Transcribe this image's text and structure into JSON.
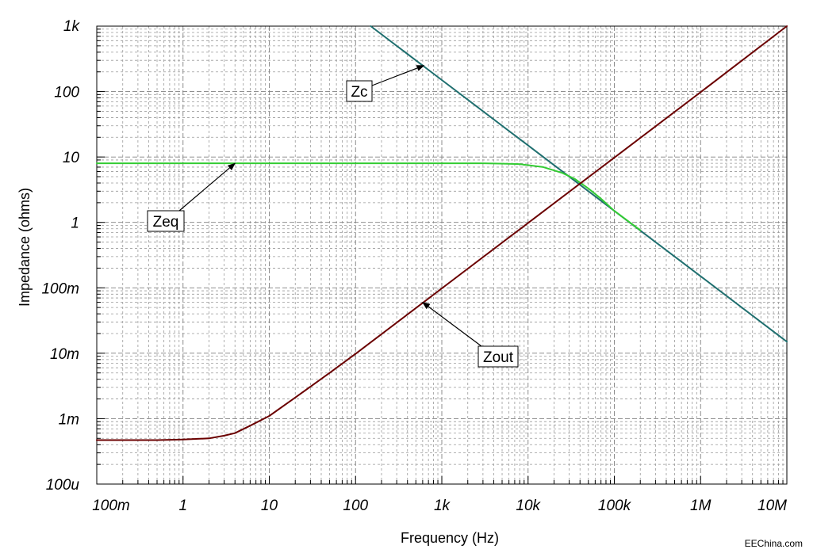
{
  "chart_data": {
    "type": "line",
    "title": "",
    "xlabel": "Frequency (Hz)",
    "ylabel": "Impedance (ohms)",
    "x_scale": "log",
    "y_scale": "log",
    "xlim": [
      0.1,
      10000000
    ],
    "ylim": [
      0.0001,
      1000
    ],
    "grid": true,
    "x_ticks": [
      {
        "value": 0.1,
        "label": "100m"
      },
      {
        "value": 1,
        "label": "1"
      },
      {
        "value": 10,
        "label": "10"
      },
      {
        "value": 100,
        "label": "100"
      },
      {
        "value": 1000,
        "label": "1k"
      },
      {
        "value": 10000,
        "label": "10k"
      },
      {
        "value": 100000,
        "label": "100k"
      },
      {
        "value": 1000000,
        "label": "1M"
      },
      {
        "value": 10000000,
        "label": "10M"
      }
    ],
    "y_ticks": [
      {
        "value": 0.0001,
        "label": "100u"
      },
      {
        "value": 0.001,
        "label": "1m"
      },
      {
        "value": 0.01,
        "label": "10m"
      },
      {
        "value": 0.1,
        "label": "100m"
      },
      {
        "value": 1,
        "label": "1"
      },
      {
        "value": 10,
        "label": "10"
      },
      {
        "value": 100,
        "label": "100"
      },
      {
        "value": 1000,
        "label": "1k"
      }
    ],
    "series": [
      {
        "name": "Zc",
        "color": "#1f6f6f",
        "points": [
          [
            150,
            1000
          ],
          [
            1000,
            150
          ],
          [
            10000,
            15
          ],
          [
            100000,
            1.5
          ],
          [
            1000000,
            0.15
          ],
          [
            10000000,
            0.015
          ]
        ]
      },
      {
        "name": "Zeq",
        "color": "#33cc33",
        "points": [
          [
            0.1,
            8
          ],
          [
            1,
            8
          ],
          [
            100,
            8
          ],
          [
            3000,
            8
          ],
          [
            8000,
            7.8
          ],
          [
            15000,
            7
          ],
          [
            25000,
            5.7
          ],
          [
            35000,
            4.6
          ],
          [
            50000,
            3.3
          ],
          [
            70000,
            2.3
          ],
          [
            100000,
            1.5
          ],
          [
            200000,
            0.76
          ]
        ]
      },
      {
        "name": "Zout",
        "color": "#6b0000",
        "points": [
          [
            0.1,
            0.00047
          ],
          [
            0.5,
            0.00047
          ],
          [
            1,
            0.00048
          ],
          [
            2,
            0.0005
          ],
          [
            3,
            0.00055
          ],
          [
            4,
            0.0006
          ],
          [
            6,
            0.00078
          ],
          [
            10,
            0.0011
          ],
          [
            20,
            0.0021
          ],
          [
            50,
            0.005
          ],
          [
            100,
            0.0098
          ],
          [
            1000,
            0.098
          ],
          [
            10000,
            0.98
          ],
          [
            100000,
            9.8
          ],
          [
            1000000,
            98
          ],
          [
            10000000,
            1000
          ]
        ]
      }
    ],
    "annotations": [
      {
        "text": "Zc",
        "target": [
          620,
          250
        ]
      },
      {
        "text": "Zeq",
        "target": [
          4,
          8
        ]
      },
      {
        "text": "Zout",
        "target": [
          600,
          0.06
        ]
      }
    ],
    "credit": "EEChina.com"
  }
}
